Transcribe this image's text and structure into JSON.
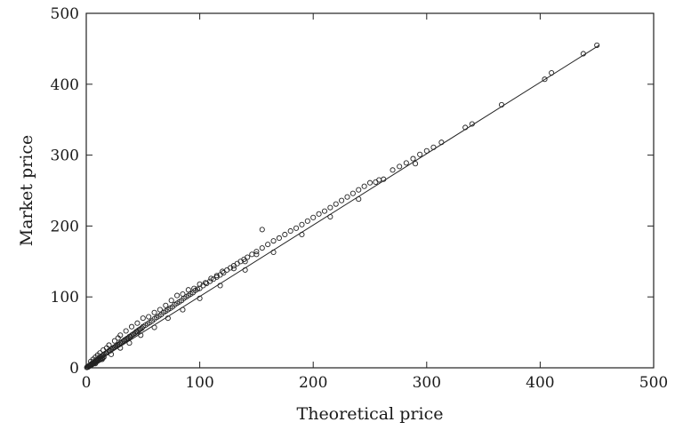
{
  "chart_data": {
    "type": "scatter",
    "title": "",
    "xlabel": "Theoretical price",
    "ylabel": "Market price",
    "xlim": [
      0,
      500
    ],
    "ylim": [
      0,
      500
    ],
    "xticks": [
      "0",
      "100",
      "200",
      "300",
      "400",
      "500"
    ],
    "yticks": [
      "0",
      "100",
      "200",
      "300",
      "400",
      "500"
    ],
    "grid": false,
    "marker": "open-circle",
    "fit_line": {
      "x": [
        0,
        452
      ],
      "y": [
        0,
        455
      ]
    },
    "points": [
      [
        0.5,
        0.5
      ],
      [
        1,
        1.5
      ],
      [
        1.5,
        1
      ],
      [
        2,
        2.5
      ],
      [
        2.5,
        2
      ],
      [
        3,
        3.5
      ],
      [
        3.5,
        3
      ],
      [
        4,
        5
      ],
      [
        4.5,
        4
      ],
      [
        5,
        6
      ],
      [
        5.5,
        5
      ],
      [
        6,
        7
      ],
      [
        6.5,
        6
      ],
      [
        7,
        8.5
      ],
      [
        7.5,
        7
      ],
      [
        8,
        9.5
      ],
      [
        8.5,
        8
      ],
      [
        9,
        11
      ],
      [
        9.5,
        9
      ],
      [
        10,
        12
      ],
      [
        10.5,
        10
      ],
      [
        11,
        13
      ],
      [
        11.5,
        11
      ],
      [
        12,
        14.5
      ],
      [
        12.5,
        12
      ],
      [
        13,
        15.5
      ],
      [
        13.5,
        13
      ],
      [
        14,
        17
      ],
      [
        14.5,
        14
      ],
      [
        15,
        18
      ],
      [
        15.5,
        15
      ],
      [
        16,
        19
      ],
      [
        17,
        20.5
      ],
      [
        18,
        21
      ],
      [
        19,
        22.5
      ],
      [
        20,
        24
      ],
      [
        21,
        24
      ],
      [
        22,
        26
      ],
      [
        23,
        27
      ],
      [
        24,
        28.5
      ],
      [
        25,
        29
      ],
      [
        26,
        30.5
      ],
      [
        27,
        31
      ],
      [
        28,
        32.5
      ],
      [
        29,
        33
      ],
      [
        30,
        35
      ],
      [
        31,
        35
      ],
      [
        32,
        37
      ],
      [
        33,
        38
      ],
      [
        34,
        39.5
      ],
      [
        35,
        40
      ],
      [
        36,
        41.5
      ],
      [
        37,
        42
      ],
      [
        38,
        44
      ],
      [
        39,
        44
      ],
      [
        40,
        46
      ],
      [
        41,
        47
      ],
      [
        42,
        48
      ],
      [
        43,
        49
      ],
      [
        44,
        51
      ],
      [
        45,
        51
      ],
      [
        46,
        53
      ],
      [
        47,
        54
      ],
      [
        48,
        55
      ],
      [
        49,
        56
      ],
      [
        50,
        58
      ],
      [
        52,
        60
      ],
      [
        54,
        62
      ],
      [
        56,
        64
      ],
      [
        58,
        66
      ],
      [
        60,
        69
      ],
      [
        62,
        71
      ],
      [
        64,
        73
      ],
      [
        66,
        75
      ],
      [
        68,
        78
      ],
      [
        70,
        80
      ],
      [
        72,
        82
      ],
      [
        74,
        84
      ],
      [
        76,
        86
      ],
      [
        78,
        89
      ],
      [
        80,
        91
      ],
      [
        82,
        93
      ],
      [
        84,
        95
      ],
      [
        86,
        98
      ],
      [
        88,
        100
      ],
      [
        90,
        102
      ],
      [
        92,
        104
      ],
      [
        94,
        106
      ],
      [
        96,
        109
      ],
      [
        98,
        111
      ],
      [
        100,
        112
      ],
      [
        103,
        116
      ],
      [
        106,
        119
      ],
      [
        109,
        122
      ],
      [
        112,
        125
      ],
      [
        115,
        128
      ],
      [
        118,
        131
      ],
      [
        121,
        134
      ],
      [
        124,
        138
      ],
      [
        127,
        141
      ],
      [
        130,
        144
      ],
      [
        133,
        147
      ],
      [
        136,
        150
      ],
      [
        139,
        153
      ],
      [
        142,
        156
      ],
      [
        146,
        160
      ],
      [
        150,
        164
      ],
      [
        155,
        169
      ],
      [
        160,
        174
      ],
      [
        165,
        179
      ],
      [
        170,
        183
      ],
      [
        175,
        188
      ],
      [
        180,
        193
      ],
      [
        185,
        197
      ],
      [
        190,
        202
      ],
      [
        195,
        207
      ],
      [
        200,
        212
      ],
      [
        205,
        217
      ],
      [
        210,
        221
      ],
      [
        215,
        226
      ],
      [
        220,
        231
      ],
      [
        225,
        236
      ],
      [
        230,
        241
      ],
      [
        235,
        246
      ],
      [
        240,
        251
      ],
      [
        245,
        256
      ],
      [
        250,
        261
      ],
      [
        255,
        262
      ],
      [
        258,
        265
      ],
      [
        262,
        266
      ],
      [
        270,
        279
      ],
      [
        276,
        284
      ],
      [
        282,
        289
      ],
      [
        288,
        295
      ],
      [
        294,
        301
      ],
      [
        300,
        306
      ],
      [
        306,
        311
      ],
      [
        313,
        318
      ],
      [
        334,
        339
      ],
      [
        340,
        344
      ],
      [
        366,
        371
      ],
      [
        404,
        407
      ],
      [
        410,
        416
      ],
      [
        438,
        443
      ],
      [
        450,
        455
      ],
      [
        4,
        9
      ],
      [
        6,
        12
      ],
      [
        8,
        15
      ],
      [
        10,
        18
      ],
      [
        12,
        21
      ],
      [
        15,
        25
      ],
      [
        18,
        28
      ],
      [
        20,
        32
      ],
      [
        25,
        38
      ],
      [
        28,
        42
      ],
      [
        30,
        46
      ],
      [
        35,
        52
      ],
      [
        40,
        58
      ],
      [
        45,
        63
      ],
      [
        50,
        70
      ],
      [
        55,
        72
      ],
      [
        60,
        78
      ],
      [
        65,
        82
      ],
      [
        70,
        88
      ],
      [
        75,
        95
      ],
      [
        80,
        102
      ],
      [
        85,
        104
      ],
      [
        90,
        110
      ],
      [
        95,
        112
      ],
      [
        100,
        118
      ],
      [
        105,
        120
      ],
      [
        110,
        126
      ],
      [
        115,
        130
      ],
      [
        120,
        136
      ],
      [
        130,
        140
      ],
      [
        140,
        150
      ],
      [
        150,
        160
      ],
      [
        155,
        195
      ],
      [
        8,
        6
      ],
      [
        14,
        12
      ],
      [
        22,
        19
      ],
      [
        30,
        28
      ],
      [
        38,
        35
      ],
      [
        48,
        46
      ],
      [
        60,
        57
      ],
      [
        72,
        70
      ],
      [
        85,
        82
      ],
      [
        100,
        98
      ],
      [
        118,
        116
      ],
      [
        140,
        138
      ],
      [
        165,
        163
      ],
      [
        190,
        188
      ],
      [
        215,
        213
      ],
      [
        240,
        238
      ],
      [
        290,
        288
      ]
    ]
  }
}
